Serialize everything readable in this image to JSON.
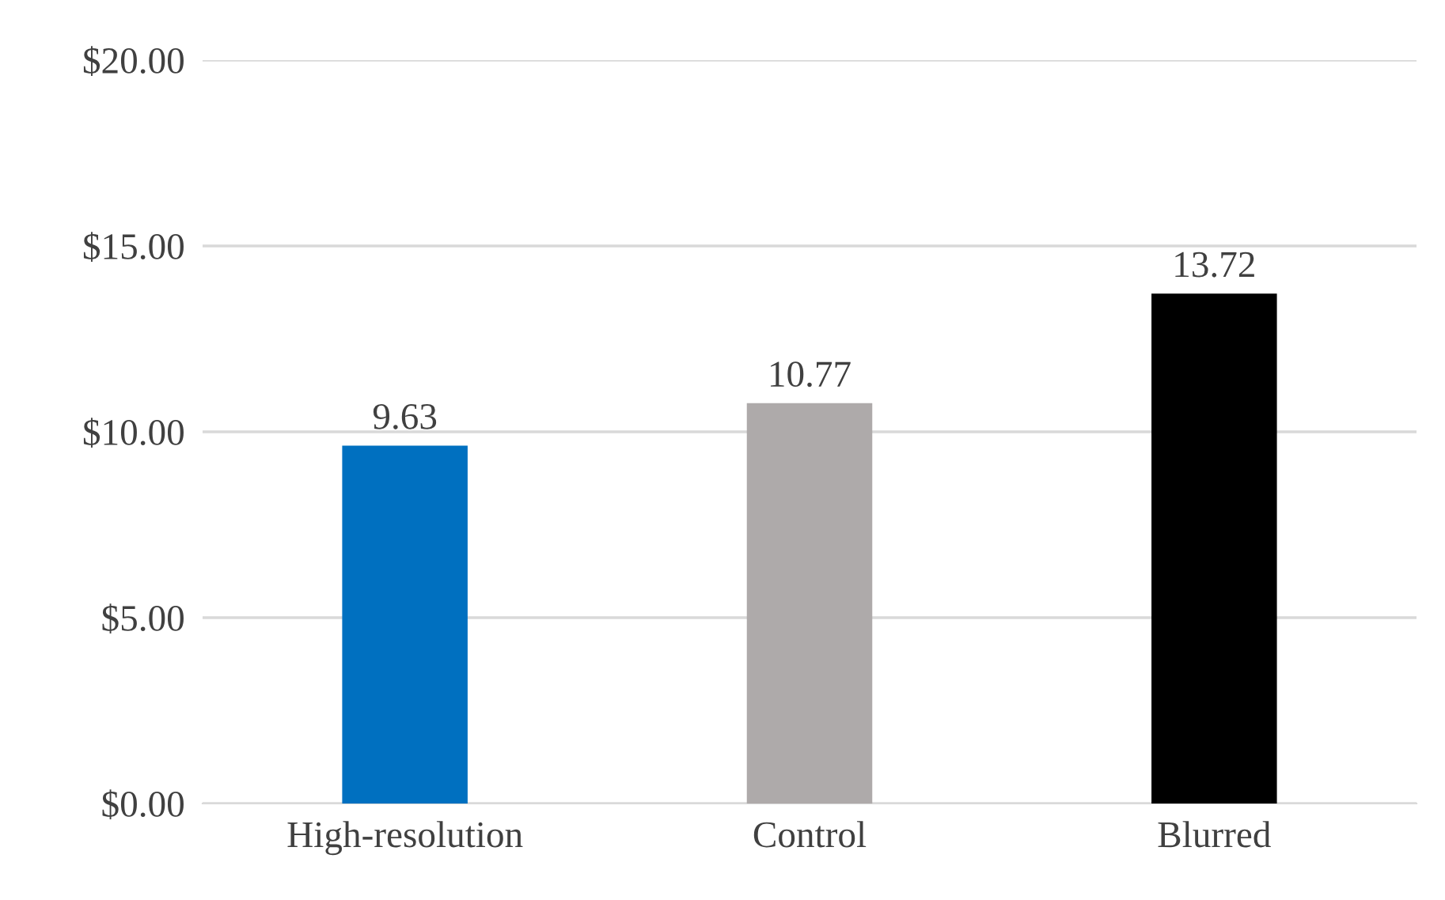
{
  "chart_data": {
    "type": "bar",
    "categories": [
      "High-resolution",
      "Control",
      "Blurred"
    ],
    "values": [
      9.63,
      10.77,
      13.72
    ],
    "colors": [
      "#0070c0",
      "#aeaaaa",
      "#000000"
    ],
    "data_labels": true,
    "ylim": [
      0,
      20
    ],
    "yticks": [
      {
        "value": 0,
        "label": "$0.00"
      },
      {
        "value": 5,
        "label": "$5.00"
      },
      {
        "value": 10,
        "label": "$10.00"
      },
      {
        "value": 15,
        "label": "$15.00"
      },
      {
        "value": 20,
        "label": "$20.00"
      }
    ],
    "grid": "y",
    "legend": false
  }
}
